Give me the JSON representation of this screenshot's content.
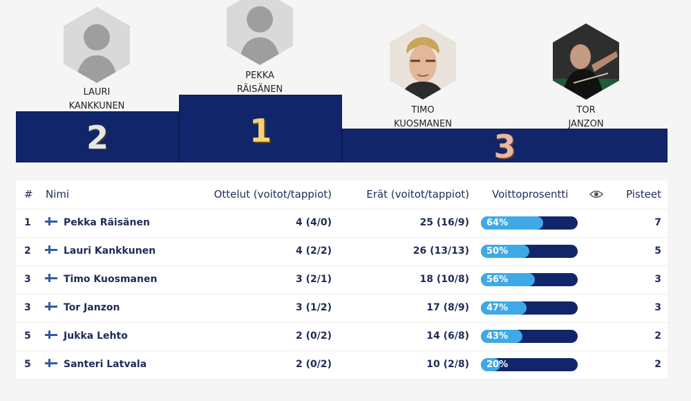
{
  "podium": {
    "players": [
      {
        "place": "2",
        "first": "LAURI",
        "last": "KANKKUNEN",
        "photo": "placeholder"
      },
      {
        "place": "1",
        "first": "PEKKA",
        "last": "RÄISÄNEN",
        "photo": "placeholder"
      },
      {
        "place": "3",
        "first": "TIMO",
        "last": "KUOSMANEN",
        "photo": "portrait"
      },
      {
        "place": "3",
        "first": "TOR",
        "last": "JANZON",
        "photo": "portrait"
      }
    ],
    "ranks": {
      "second": "2",
      "first": "1",
      "third": "3"
    },
    "colors": {
      "block": "#11266a",
      "rank_first": "#f3d27a",
      "rank_second": "#e6e6e6",
      "rank_third": "#e8b8a2"
    }
  },
  "table": {
    "headers": {
      "rank": "#",
      "name": "Nimi",
      "matches": "Ottelut (voitot/tappiot)",
      "sets": "Erät (voitot/tappiot)",
      "win_pct": "Voittoprosentti",
      "visibility_icon": "eye-icon",
      "points": "Pisteet"
    },
    "rows": [
      {
        "rank": "1",
        "name": "Pekka Räisänen",
        "matches": "4 (4/0)",
        "sets": "25 (16/9)",
        "win_pct": "64%",
        "win_value": 64,
        "points": "7"
      },
      {
        "rank": "2",
        "name": "Lauri Kankkunen",
        "matches": "4 (2/2)",
        "sets": "26 (13/13)",
        "win_pct": "50%",
        "win_value": 50,
        "points": "5"
      },
      {
        "rank": "3",
        "name": "Timo Kuosmanen",
        "matches": "3 (2/1)",
        "sets": "18 (10/8)",
        "win_pct": "56%",
        "win_value": 56,
        "points": "3"
      },
      {
        "rank": "3",
        "name": "Tor Janzon",
        "matches": "3 (1/2)",
        "sets": "17 (8/9)",
        "win_pct": "47%",
        "win_value": 47,
        "points": "3"
      },
      {
        "rank": "5",
        "name": "Jukka Lehto",
        "matches": "2 (0/2)",
        "sets": "14 (6/8)",
        "win_pct": "43%",
        "win_value": 43,
        "points": "2"
      },
      {
        "rank": "5",
        "name": "Santeri Latvala",
        "matches": "2 (0/2)",
        "sets": "10 (2/8)",
        "win_pct": "20%",
        "win_value": 20,
        "points": "2"
      }
    ],
    "colors": {
      "bar_track": "#11266a",
      "bar_fill": "#3fa9e8"
    }
  }
}
